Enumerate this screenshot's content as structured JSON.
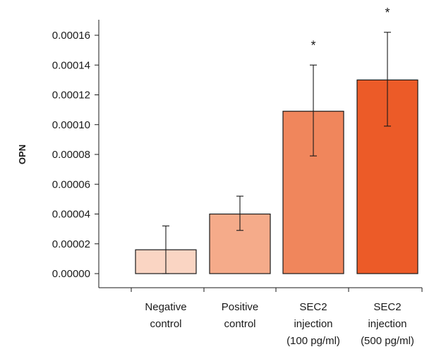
{
  "chart_data": {
    "type": "bar",
    "ylabel": "OPN",
    "xlabel": "",
    "ylim": [
      -1e-05,
      0.00017
    ],
    "yticks": [
      0,
      2e-05,
      4e-05,
      6e-05,
      8e-05,
      0.0001,
      0.00012,
      0.00014,
      0.00016
    ],
    "ytick_labels": [
      "0.00000",
      "0.00002",
      "0.00004",
      "0.00006",
      "0.00008",
      "0.00010",
      "0.00012",
      "0.00014",
      "0.00016"
    ],
    "categories": [
      [
        "Negative",
        "control"
      ],
      [
        "Positive",
        "control"
      ],
      [
        "SEC2",
        "injection",
        "(100 pg/ml)"
      ],
      [
        "SEC2",
        "injection",
        "(500 pg/ml)"
      ]
    ],
    "values": [
      1.6e-05,
      4e-05,
      0.000109,
      0.00013
    ],
    "error_low": [
      0.0,
      2.9e-05,
      7.9e-05,
      9.9e-05
    ],
    "error_high": [
      3.2e-05,
      5.2e-05,
      0.00014,
      0.000162
    ],
    "significance": [
      "",
      "",
      "*",
      "*"
    ],
    "colors": [
      "#fad5c3",
      "#f5ab8a",
      "#f0865c",
      "#ec5b28"
    ],
    "grid": false
  }
}
